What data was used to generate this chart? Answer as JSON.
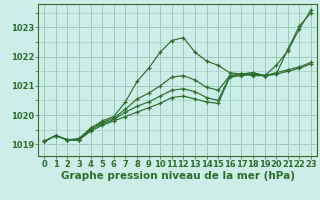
{
  "background_color": "#cceee8",
  "grid_color": "#99ccbb",
  "line_color": "#2d6e2d",
  "xlabel": "Graphe pression niveau de la mer (hPa)",
  "xlabel_fontsize": 7.5,
  "tick_fontsize": 6,
  "ylim": [
    1018.6,
    1023.8
  ],
  "xlim": [
    -0.5,
    23.5
  ],
  "yticks": [
    1019,
    1020,
    1021,
    1022,
    1023
  ],
  "xticks": [
    0,
    1,
    2,
    3,
    4,
    5,
    6,
    7,
    8,
    9,
    10,
    11,
    12,
    13,
    14,
    15,
    16,
    17,
    18,
    19,
    20,
    21,
    22,
    23
  ],
  "series": [
    [
      1019.1,
      1019.3,
      1019.15,
      1019.2,
      1019.55,
      1019.8,
      1019.95,
      1020.45,
      1021.15,
      1021.6,
      1022.15,
      1022.55,
      1022.65,
      1022.15,
      1021.85,
      1021.7,
      1021.45,
      1021.4,
      1021.35,
      1021.35,
      1021.4,
      1022.25,
      1023.05,
      1023.5
    ],
    [
      1019.1,
      1019.3,
      1019.15,
      1019.15,
      1019.45,
      1019.65,
      1019.8,
      1019.95,
      1020.1,
      1020.25,
      1020.4,
      1020.6,
      1020.65,
      1020.55,
      1020.45,
      1020.4,
      1021.3,
      1021.35,
      1021.4,
      1021.35,
      1021.4,
      1021.5,
      1021.6,
      1021.75
    ],
    [
      1019.1,
      1019.3,
      1019.15,
      1019.15,
      1019.5,
      1019.7,
      1019.85,
      1020.1,
      1020.3,
      1020.45,
      1020.65,
      1020.85,
      1020.9,
      1020.8,
      1020.6,
      1020.5,
      1021.35,
      1021.4,
      1021.45,
      1021.35,
      1021.45,
      1021.55,
      1021.65,
      1021.8
    ],
    [
      1019.1,
      1019.3,
      1019.15,
      1019.15,
      1019.55,
      1019.75,
      1019.9,
      1020.2,
      1020.55,
      1020.75,
      1021.0,
      1021.3,
      1021.35,
      1021.2,
      1020.95,
      1020.85,
      1021.35,
      1021.4,
      1021.45,
      1021.35,
      1021.7,
      1022.2,
      1022.95,
      1023.6
    ]
  ]
}
